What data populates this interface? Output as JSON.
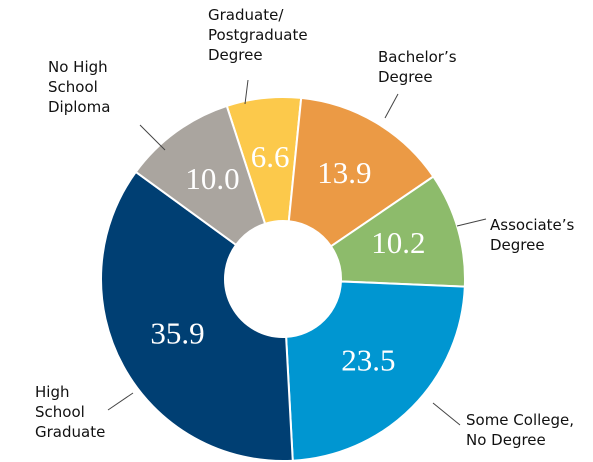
{
  "chart_data": {
    "type": "donut",
    "categories": [
      [
        "Graduate/",
        "Postgraduate",
        "Degree"
      ],
      [
        "Bachelor’s",
        "Degree"
      ],
      [
        "Associate’s",
        "Degree"
      ],
      [
        "Some College,",
        "No Degree"
      ],
      [
        "High",
        "School",
        "Graduate"
      ],
      [
        "No High",
        "School",
        "Diploma"
      ]
    ],
    "values": [
      6.6,
      13.9,
      10.2,
      23.5,
      35.9,
      10.0
    ],
    "value_labels": [
      "6.6",
      "13.9",
      "10.2",
      "23.5",
      "35.9",
      "10.0"
    ],
    "colors": [
      "#fcc94b",
      "#eb9a45",
      "#8dbb6b",
      "#0096d1",
      "#003f73",
      "#aaa59f"
    ]
  }
}
